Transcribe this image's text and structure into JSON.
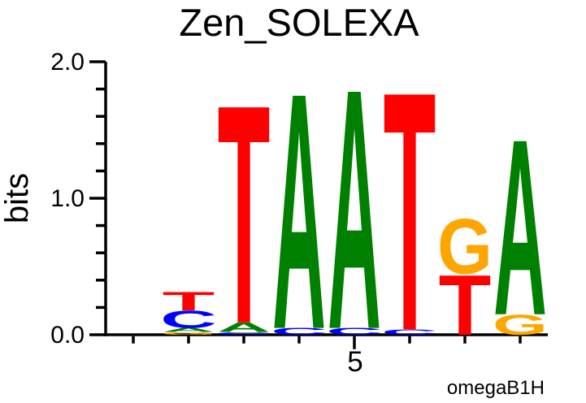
{
  "header": {
    "title": "Zen_SOLEXA"
  },
  "annotation": "omegaB1H",
  "chart_data": {
    "type": "sequence_logo",
    "title": "Zen_SOLEXA",
    "xlabel": "",
    "ylabel": "bits",
    "units": "bits",
    "ylim": [
      0.0,
      2.0
    ],
    "ytick_values": [
      0.0,
      1.0,
      2.0
    ],
    "ytick_labels": [
      "0.0",
      "1.0",
      "2.0"
    ],
    "minor_ytick_step": 0.2,
    "num_positions": 8,
    "xtick_major": {
      "position": 5,
      "label": "5"
    },
    "annotation": "omegaB1H",
    "grid": "off",
    "legend": "none",
    "alphabet_colors": {
      "A": "#008000",
      "C": "#0000ff",
      "G": "#ffa500",
      "T": "#ff0000"
    },
    "positions": [
      {
        "position": 1,
        "stack": []
      },
      {
        "position": 2,
        "stack": [
          {
            "letter": "G",
            "bits": 0.02
          },
          {
            "letter": "A",
            "bits": 0.03
          },
          {
            "letter": "C",
            "bits": 0.13
          },
          {
            "letter": "T",
            "bits": 0.14
          }
        ]
      },
      {
        "position": 3,
        "stack": [
          {
            "letter": "C",
            "bits": 0.02
          },
          {
            "letter": "A",
            "bits": 0.07
          },
          {
            "letter": "T",
            "bits": 1.64
          }
        ]
      },
      {
        "position": 4,
        "stack": [
          {
            "letter": "C",
            "bits": 0.05
          },
          {
            "letter": "A",
            "bits": 1.77
          }
        ]
      },
      {
        "position": 5,
        "stack": [
          {
            "letter": "C",
            "bits": 0.05
          },
          {
            "letter": "A",
            "bits": 1.8
          }
        ]
      },
      {
        "position": 6,
        "stack": [
          {
            "letter": "C",
            "bits": 0.04
          },
          {
            "letter": "T",
            "bits": 1.79
          }
        ]
      },
      {
        "position": 7,
        "stack": [
          {
            "letter": "T",
            "bits": 0.45
          },
          {
            "letter": "G",
            "bits": 0.41
          }
        ]
      },
      {
        "position": 8,
        "stack": [
          {
            "letter": "G",
            "bits": 0.15
          },
          {
            "letter": "A",
            "bits": 1.32
          }
        ]
      }
    ]
  }
}
